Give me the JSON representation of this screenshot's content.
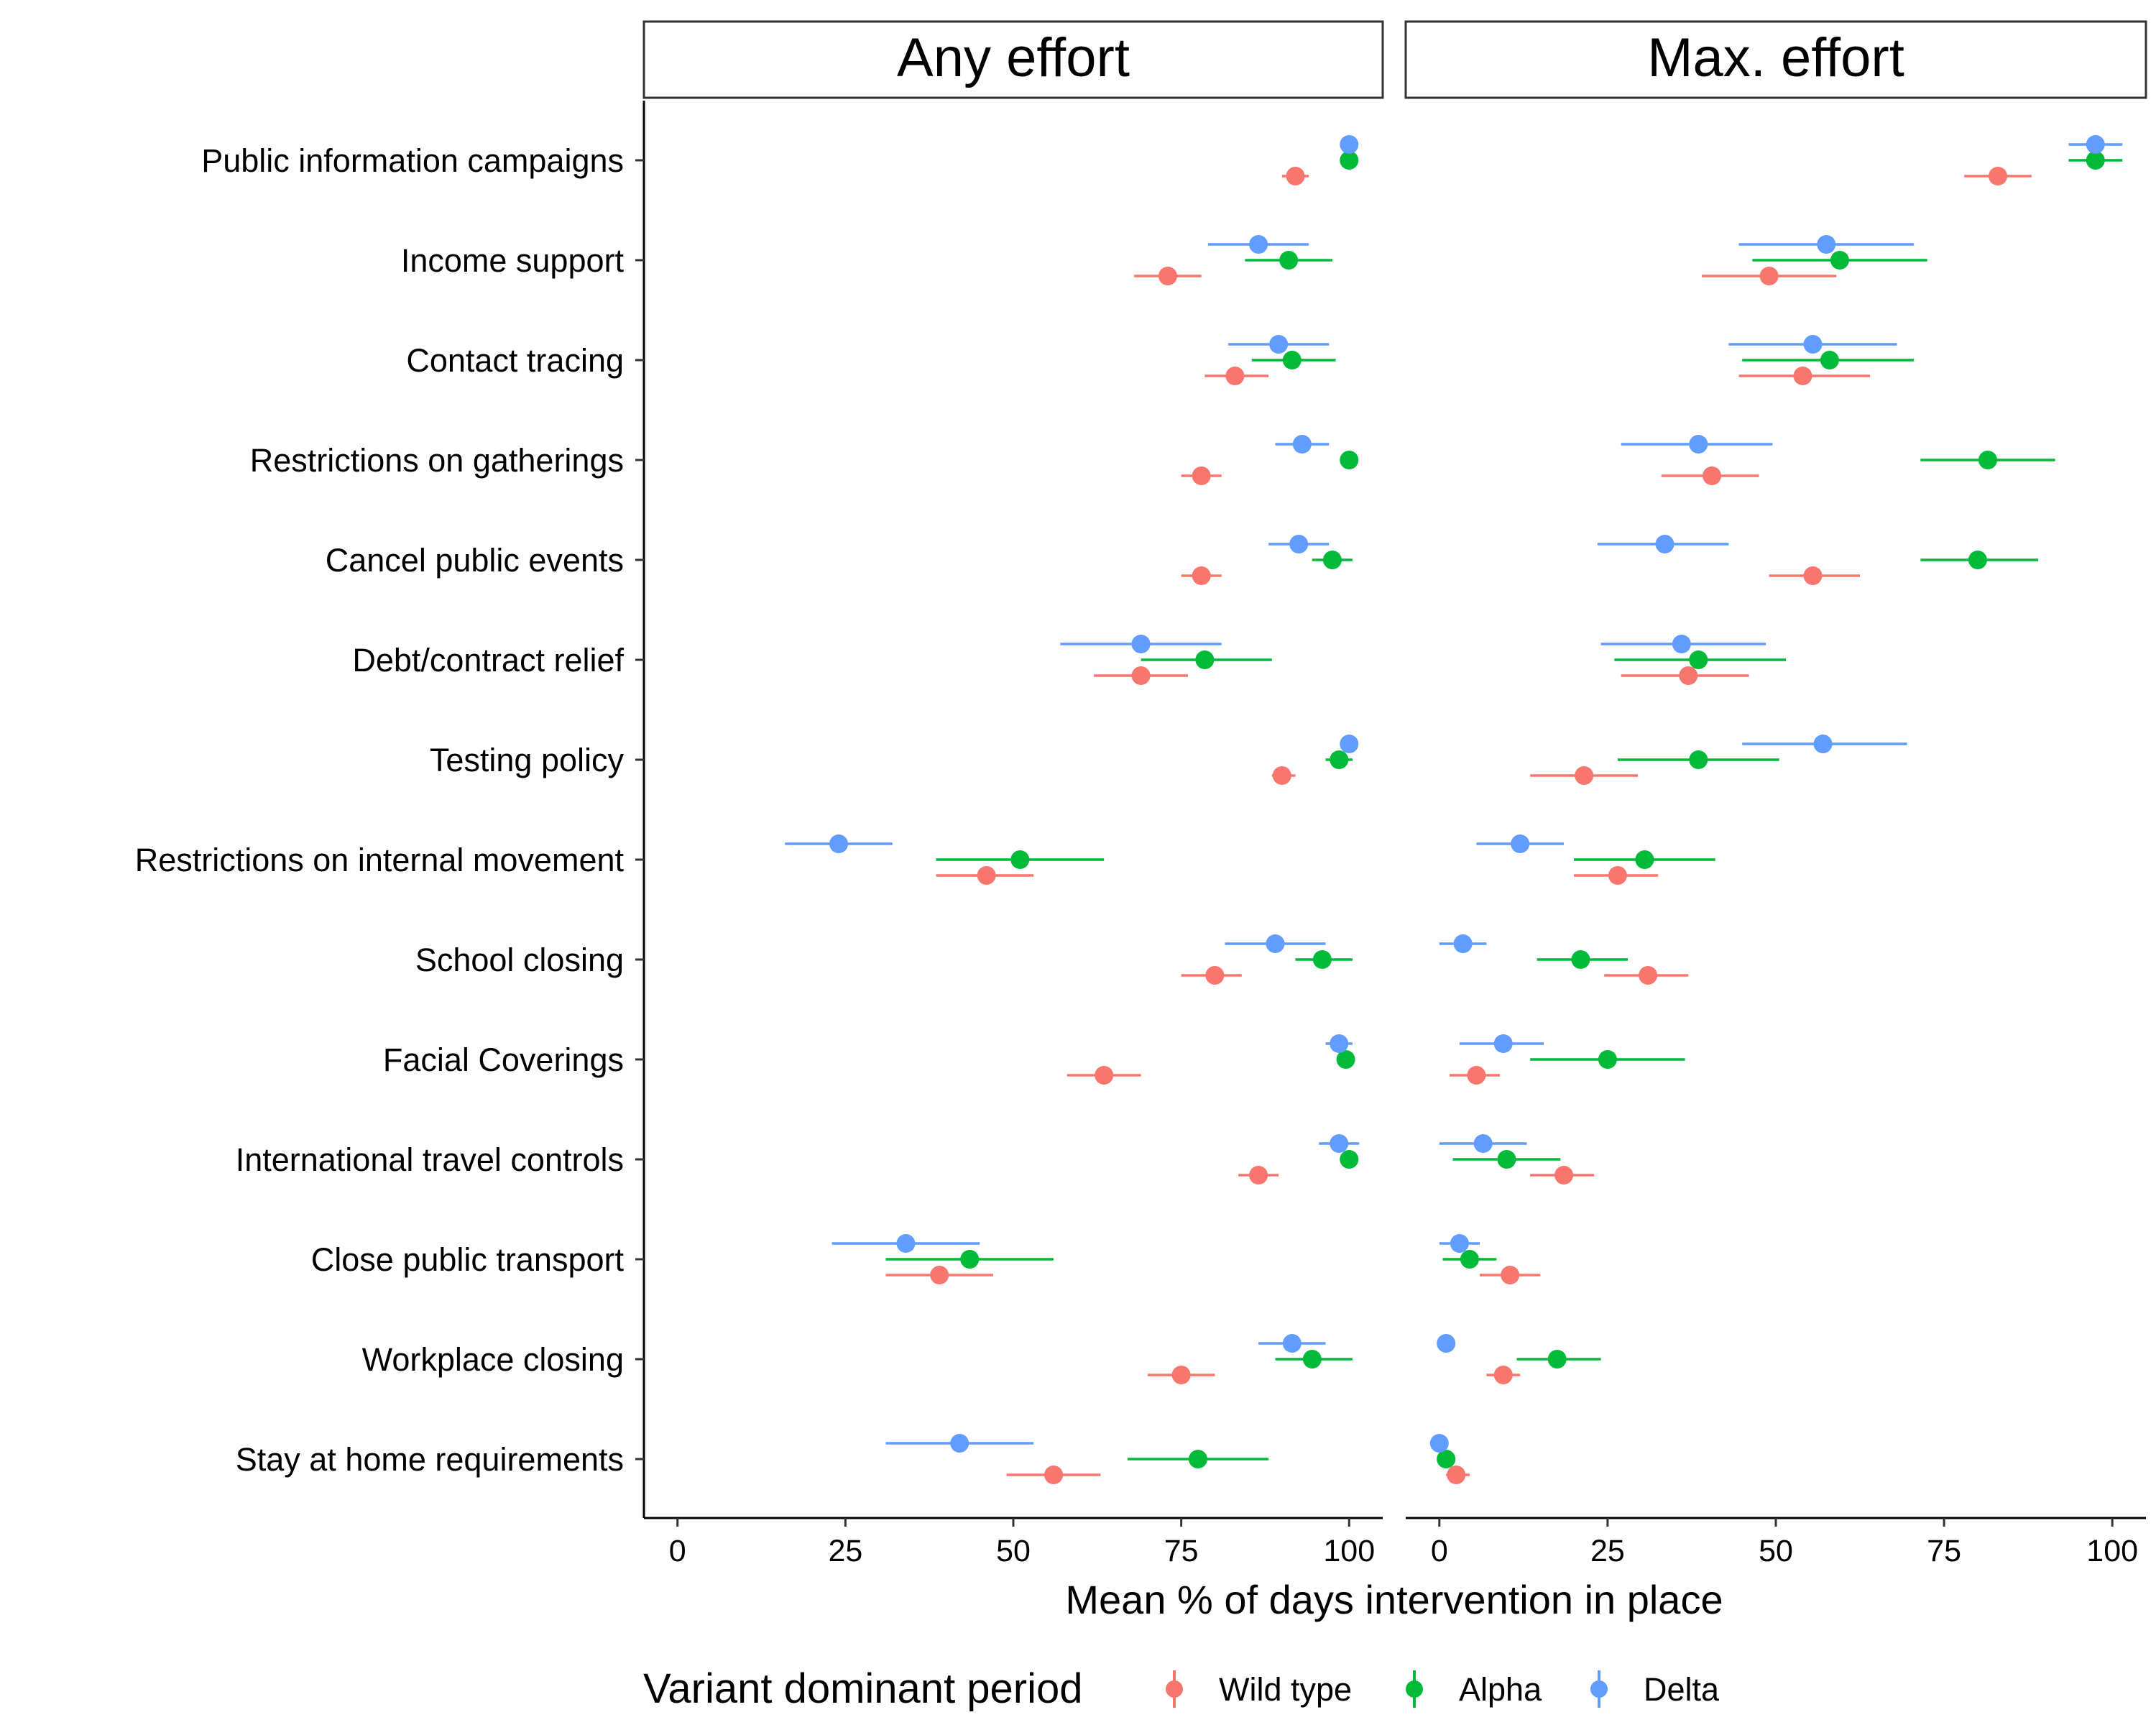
{
  "chart_data": {
    "type": "scatter",
    "subtype": "dot-with-error-bars, faceted",
    "facets": [
      {
        "name": "Any effort"
      },
      {
        "name": "Max. effort"
      }
    ],
    "xlabel": "Mean % of days intervention in place",
    "ylabel": "",
    "xlim": [
      -5,
      105
    ],
    "xticks": [
      "0",
      "25",
      "50",
      "75",
      "100"
    ],
    "xtick_values": [
      0,
      25,
      50,
      75,
      100
    ],
    "grid": false,
    "legend": {
      "title": "Variant dominant period",
      "placement": "bottom",
      "entries": [
        "Wild type",
        "Alpha",
        "Delta"
      ]
    },
    "colors": {
      "Wild type": "#F8766D",
      "Alpha": "#00BA38",
      "Delta": "#619CFF"
    },
    "categories": [
      "Public information campaigns",
      "Income support",
      "Contact tracing",
      "Restrictions on gatherings",
      "Cancel public events",
      "Debt/contract relief",
      "Testing policy",
      "Restrictions on internal movement",
      "School closing",
      "Facial Coverings",
      "International travel controls",
      "Close public transport",
      "Workplace closing",
      "Stay at home requirements"
    ],
    "series": [
      {
        "name": "Wild type",
        "any_effort": [
          {
            "mean": 92,
            "lo": 90,
            "hi": 94
          },
          {
            "mean": 73,
            "lo": 68,
            "hi": 78
          },
          {
            "mean": 83,
            "lo": 78.5,
            "hi": 88
          },
          {
            "mean": 78,
            "lo": 75,
            "hi": 81
          },
          {
            "mean": 78,
            "lo": 75,
            "hi": 81
          },
          {
            "mean": 69,
            "lo": 62,
            "hi": 76
          },
          {
            "mean": 90,
            "lo": 88.5,
            "hi": 92
          },
          {
            "mean": 46,
            "lo": 38.5,
            "hi": 53
          },
          {
            "mean": 80,
            "lo": 75,
            "hi": 84
          },
          {
            "mean": 63.5,
            "lo": 58,
            "hi": 69
          },
          {
            "mean": 86.5,
            "lo": 83.5,
            "hi": 89.5
          },
          {
            "mean": 39,
            "lo": 31,
            "hi": 47
          },
          {
            "mean": 75,
            "lo": 70,
            "hi": 80
          },
          {
            "mean": 56,
            "lo": 49,
            "hi": 63
          }
        ],
        "max_effort": [
          {
            "mean": 83,
            "lo": 78,
            "hi": 88
          },
          {
            "mean": 49,
            "lo": 39,
            "hi": 59
          },
          {
            "mean": 54,
            "lo": 44.5,
            "hi": 64
          },
          {
            "mean": 40.5,
            "lo": 33,
            "hi": 47.5
          },
          {
            "mean": 55.5,
            "lo": 49,
            "hi": 62.5
          },
          {
            "mean": 37,
            "lo": 27,
            "hi": 46
          },
          {
            "mean": 21.5,
            "lo": 13.5,
            "hi": 29.5
          },
          {
            "mean": 26.5,
            "lo": 20,
            "hi": 32.5
          },
          {
            "mean": 31,
            "lo": 24.5,
            "hi": 37
          },
          {
            "mean": 5.5,
            "lo": 1.5,
            "hi": 9
          },
          {
            "mean": 18.5,
            "lo": 13.5,
            "hi": 23
          },
          {
            "mean": 10.5,
            "lo": 6,
            "hi": 15
          },
          {
            "mean": 9.5,
            "lo": 7,
            "hi": 12
          },
          {
            "mean": 2.5,
            "lo": 1,
            "hi": 4.5
          }
        ]
      },
      {
        "name": "Alpha",
        "any_effort": [
          {
            "mean": 100,
            "lo": 100,
            "hi": 100
          },
          {
            "mean": 91,
            "lo": 84.5,
            "hi": 97.5
          },
          {
            "mean": 91.5,
            "lo": 85.5,
            "hi": 98
          },
          {
            "mean": 100,
            "lo": 100,
            "hi": 100
          },
          {
            "mean": 97.5,
            "lo": 94.5,
            "hi": 100.5
          },
          {
            "mean": 78.5,
            "lo": 69,
            "hi": 88.5
          },
          {
            "mean": 98.5,
            "lo": 96.5,
            "hi": 100.5
          },
          {
            "mean": 51,
            "lo": 38.5,
            "hi": 63.5
          },
          {
            "mean": 96,
            "lo": 92,
            "hi": 100.5
          },
          {
            "mean": 99.5,
            "lo": 99,
            "hi": 100
          },
          {
            "mean": 100,
            "lo": 100,
            "hi": 100
          },
          {
            "mean": 43.5,
            "lo": 31,
            "hi": 56
          },
          {
            "mean": 94.5,
            "lo": 89,
            "hi": 100.5
          },
          {
            "mean": 77.5,
            "lo": 67,
            "hi": 88
          }
        ],
        "max_effort": [
          {
            "mean": 97.5,
            "lo": 93.5,
            "hi": 101.5
          },
          {
            "mean": 59.5,
            "lo": 46.5,
            "hi": 72.5
          },
          {
            "mean": 58,
            "lo": 45,
            "hi": 70.5
          },
          {
            "mean": 81.5,
            "lo": 71.5,
            "hi": 91.5
          },
          {
            "mean": 80,
            "lo": 71.5,
            "hi": 89
          },
          {
            "mean": 38.5,
            "lo": 26,
            "hi": 51.5
          },
          {
            "mean": 38.5,
            "lo": 26.5,
            "hi": 50.5
          },
          {
            "mean": 30.5,
            "lo": 20,
            "hi": 41
          },
          {
            "mean": 21,
            "lo": 14.5,
            "hi": 28
          },
          {
            "mean": 25,
            "lo": 13.5,
            "hi": 36.5
          },
          {
            "mean": 10,
            "lo": 2,
            "hi": 18
          },
          {
            "mean": 4.5,
            "lo": 0.5,
            "hi": 8.5
          },
          {
            "mean": 17.5,
            "lo": 11.5,
            "hi": 24
          },
          {
            "mean": 1,
            "lo": 0,
            "hi": 2
          }
        ]
      },
      {
        "name": "Delta",
        "any_effort": [
          {
            "mean": 100,
            "lo": 100,
            "hi": 100
          },
          {
            "mean": 86.5,
            "lo": 79,
            "hi": 94
          },
          {
            "mean": 89.5,
            "lo": 82,
            "hi": 97
          },
          {
            "mean": 93,
            "lo": 89,
            "hi": 97
          },
          {
            "mean": 92.5,
            "lo": 88,
            "hi": 97
          },
          {
            "mean": 69,
            "lo": 57,
            "hi": 81
          },
          {
            "mean": 100,
            "lo": 100,
            "hi": 100
          },
          {
            "mean": 24,
            "lo": 16,
            "hi": 32
          },
          {
            "mean": 89,
            "lo": 81.5,
            "hi": 96.5
          },
          {
            "mean": 98.5,
            "lo": 96.5,
            "hi": 100.5
          },
          {
            "mean": 98.5,
            "lo": 95.5,
            "hi": 101.5
          },
          {
            "mean": 34,
            "lo": 23,
            "hi": 45
          },
          {
            "mean": 91.5,
            "lo": 86.5,
            "hi": 96.5
          },
          {
            "mean": 42,
            "lo": 31,
            "hi": 53
          }
        ],
        "max_effort": [
          {
            "mean": 97.5,
            "lo": 93.5,
            "hi": 101.5
          },
          {
            "mean": 57.5,
            "lo": 44.5,
            "hi": 70.5
          },
          {
            "mean": 55.5,
            "lo": 43,
            "hi": 68
          },
          {
            "mean": 38.5,
            "lo": 27,
            "hi": 49.5
          },
          {
            "mean": 33.5,
            "lo": 23.5,
            "hi": 43
          },
          {
            "mean": 36,
            "lo": 24,
            "hi": 48.5
          },
          {
            "mean": 57,
            "lo": 45,
            "hi": 69.5
          },
          {
            "mean": 12,
            "lo": 5.5,
            "hi": 18.5
          },
          {
            "mean": 3.5,
            "lo": 0,
            "hi": 7
          },
          {
            "mean": 9.5,
            "lo": 3,
            "hi": 15.5
          },
          {
            "mean": 6.5,
            "lo": 0,
            "hi": 13
          },
          {
            "mean": 3,
            "lo": 0,
            "hi": 6
          },
          {
            "mean": 1,
            "lo": 1,
            "hi": 1
          },
          {
            "mean": 0,
            "lo": 0,
            "hi": 0
          }
        ]
      }
    ]
  }
}
